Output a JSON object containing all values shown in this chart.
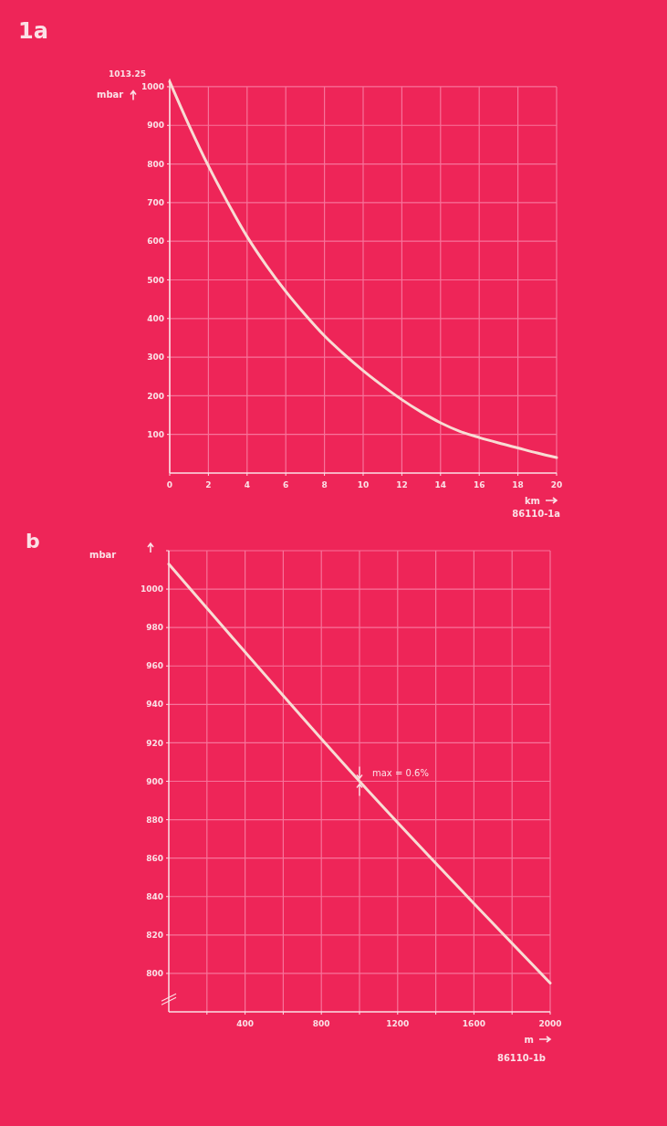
{
  "chart_data": [
    {
      "type": "line",
      "title": "1a",
      "xlabel": "km",
      "ylabel": "mbar",
      "x": [
        0,
        1,
        2,
        3,
        4,
        5,
        6,
        7,
        8,
        9,
        10,
        11,
        12,
        13,
        14,
        15,
        16,
        17,
        18,
        19,
        20
      ],
      "series": [
        {
          "color": "#f8dcd4",
          "values": [
            1013.25,
            900,
            795,
            700,
            612,
            537,
            470,
            410,
            355,
            308,
            265,
            226,
            190,
            158,
            130,
            108,
            92,
            78,
            65,
            52,
            40
          ]
        }
      ],
      "xlim": [
        0,
        20
      ],
      "ylim": [
        0,
        1020
      ],
      "xticks": [
        0,
        2,
        4,
        6,
        8,
        10,
        12,
        14,
        16,
        18,
        20
      ],
      "yticks": [
        100,
        200,
        300,
        400,
        500,
        600,
        700,
        800,
        900,
        1000
      ],
      "grid": true,
      "line_style": "solid",
      "marker": "none",
      "annotations": [
        {
          "text": "1013.25",
          "x": 0,
          "y": 1013.25
        },
        "86110-1a"
      ]
    },
    {
      "type": "line",
      "title": "b",
      "xlabel": "m",
      "ylabel": "mbar",
      "x": [
        0,
        1000,
        2000
      ],
      "series": [
        {
          "color": "#f8dcd4",
          "values": [
            1013,
            900,
            795
          ]
        }
      ],
      "xlim": [
        0,
        2000
      ],
      "ylim": [
        780,
        1020
      ],
      "xticks": [
        {
          "value": 200,
          "label": null
        },
        400,
        {
          "value": 600,
          "label": null
        },
        800,
        {
          "value": 1000,
          "label": null
        },
        1200,
        {
          "value": 1400,
          "label": null
        },
        1600,
        {
          "value": 1800,
          "label": null
        },
        2000
      ],
      "yticks": [
        800,
        820,
        840,
        860,
        880,
        900,
        920,
        940,
        960,
        980,
        1000,
        {
          "value": 1020,
          "label": null
        }
      ],
      "grid": true,
      "line_style": "solid",
      "marker": "none",
      "annotations": [
        {
          "text": "max = 0.6%",
          "x": 1000,
          "y": 900
        },
        "86110-1b"
      ]
    }
  ]
}
